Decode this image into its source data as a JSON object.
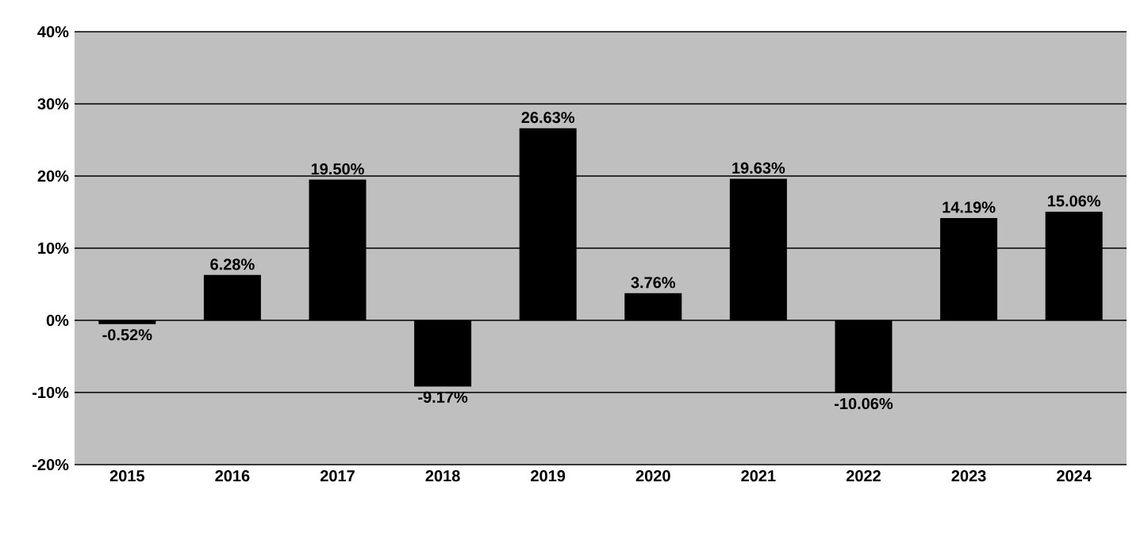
{
  "chart_data": {
    "type": "bar",
    "categories": [
      "2015",
      "2016",
      "2017",
      "2018",
      "2019",
      "2020",
      "2021",
      "2022",
      "2023",
      "2024"
    ],
    "values": [
      -0.52,
      6.28,
      19.5,
      -9.17,
      26.63,
      3.76,
      19.63,
      -10.06,
      14.19,
      15.06
    ],
    "value_labels": [
      "-0.52%",
      "6.28%",
      "19.50%",
      "-9.17%",
      "26.63%",
      "3.76%",
      "19.63%",
      "-10.06%",
      "14.19%",
      "15.06%"
    ],
    "color": "#000000",
    "ylim": [
      -20,
      40
    ],
    "yticks": [
      {
        "value": -20,
        "label": "-20%"
      },
      {
        "value": -10,
        "label": "-10%"
      },
      {
        "value": 0,
        "label": "0%"
      },
      {
        "value": 10,
        "label": "10%"
      },
      {
        "value": 20,
        "label": "20%"
      },
      {
        "value": 30,
        "label": "30%"
      },
      {
        "value": 40,
        "label": "40%"
      }
    ],
    "grid": "y"
  }
}
